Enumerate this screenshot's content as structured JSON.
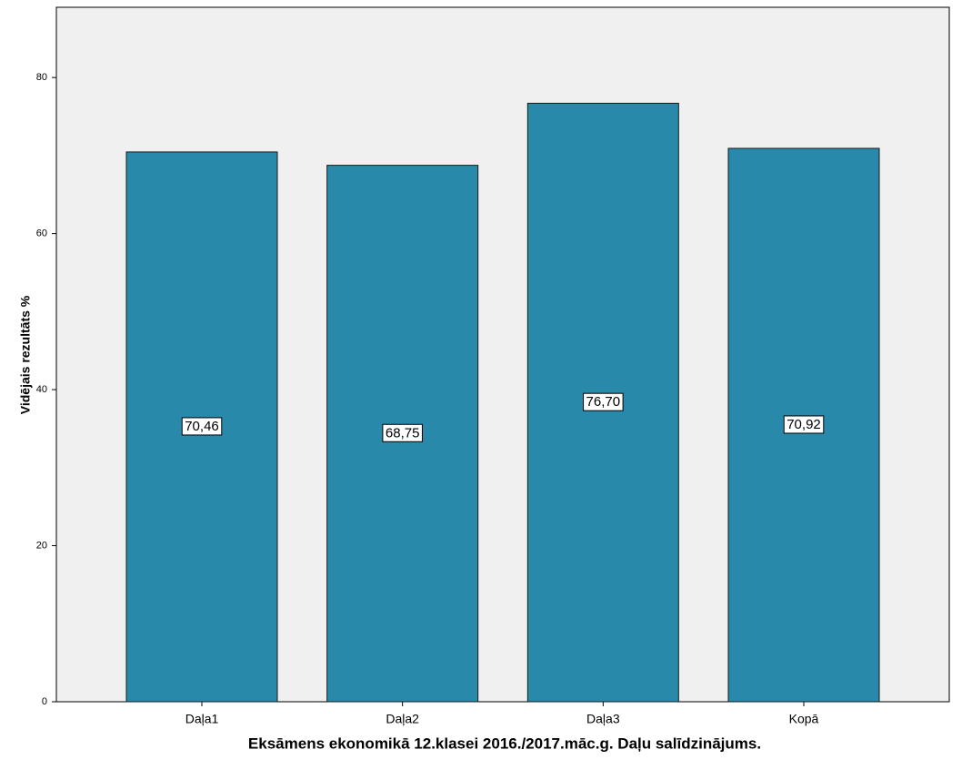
{
  "chart_data": {
    "type": "bar",
    "title": "Eksāmens ekonomikā 12.klasei 2016./2017.māc.g. Daļu salīdzinājums.",
    "y_label": "Vidējais rezultāts %",
    "categories": [
      "Daļa1",
      "Daļa2",
      "Daļa3",
      "Kopā"
    ],
    "values": [
      70.46,
      68.75,
      76.7,
      70.92
    ],
    "value_labels": [
      "70,46",
      "68,75",
      "76,70",
      "70,92"
    ],
    "color": "#2889ab",
    "ylim": [
      0,
      89
    ],
    "yticks": [
      0,
      20,
      40,
      60,
      80
    ]
  }
}
